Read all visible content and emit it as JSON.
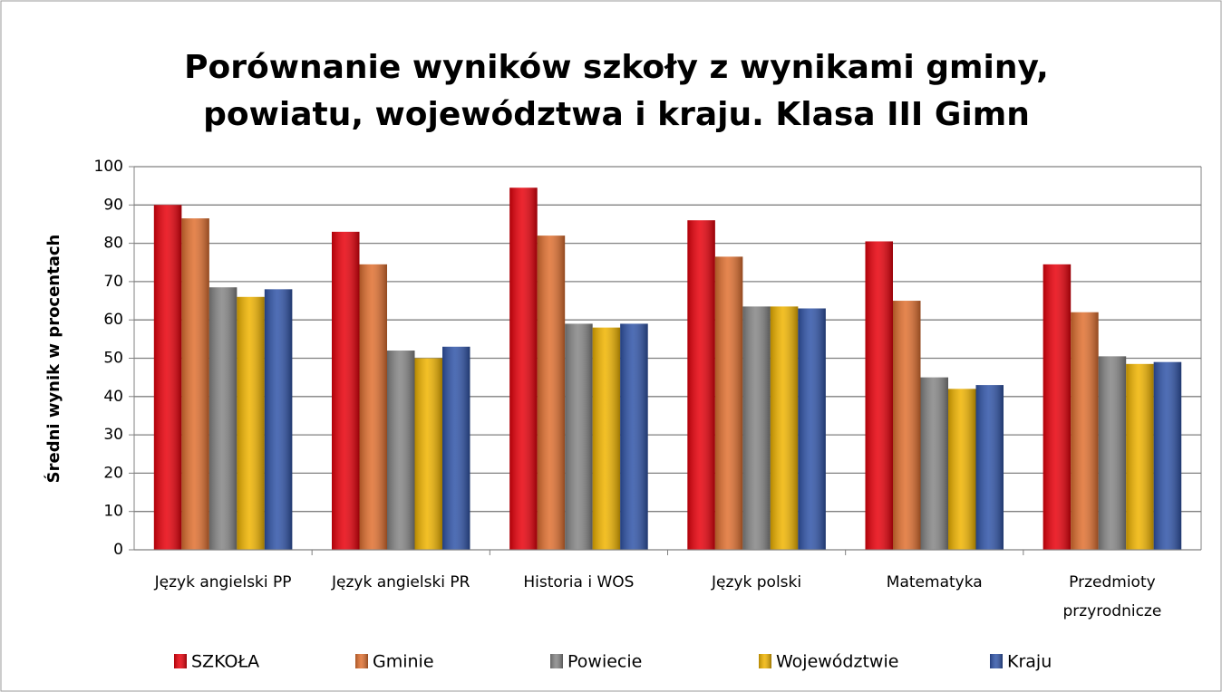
{
  "chart_data": {
    "type": "bar",
    "title": [
      "Porównanie wyników szkoły z wynikami  gminy,",
      "powiatu, województwa i kraju. Klasa III Gimn"
    ],
    "y_label": "Średni   wynik  w   procentach",
    "categories": [
      "Język angielski PP",
      "Język angielski PR",
      "Historia i WOS",
      "Język polski",
      "Matematyka",
      "Przedmioty przyrodnicze"
    ],
    "series": [
      {
        "name": "SZKOŁA",
        "color": "#e8000b",
        "values": [
          90,
          83,
          94.5,
          86,
          80.5,
          74.5
        ]
      },
      {
        "name": "Gminie",
        "color": "#e07030",
        "values": [
          86.5,
          74.5,
          82,
          76.5,
          65,
          62
        ]
      },
      {
        "name": "Powiecie",
        "color": "#858585",
        "values": [
          68.5,
          52,
          59,
          63.5,
          45,
          50.5
        ]
      },
      {
        "name": "Województwie",
        "color": "#f0b400",
        "values": [
          66,
          50,
          58,
          63.5,
          42,
          48.5
        ]
      },
      {
        "name": "Kraju",
        "color": "#3054a8",
        "values": [
          68,
          53,
          59,
          63,
          43,
          49
        ]
      }
    ],
    "ylim": [
      0,
      100
    ],
    "yticks": [
      0,
      10,
      20,
      30,
      40,
      50,
      60,
      70,
      80,
      90,
      100
    ],
    "grid": true,
    "legend": "bottom"
  }
}
